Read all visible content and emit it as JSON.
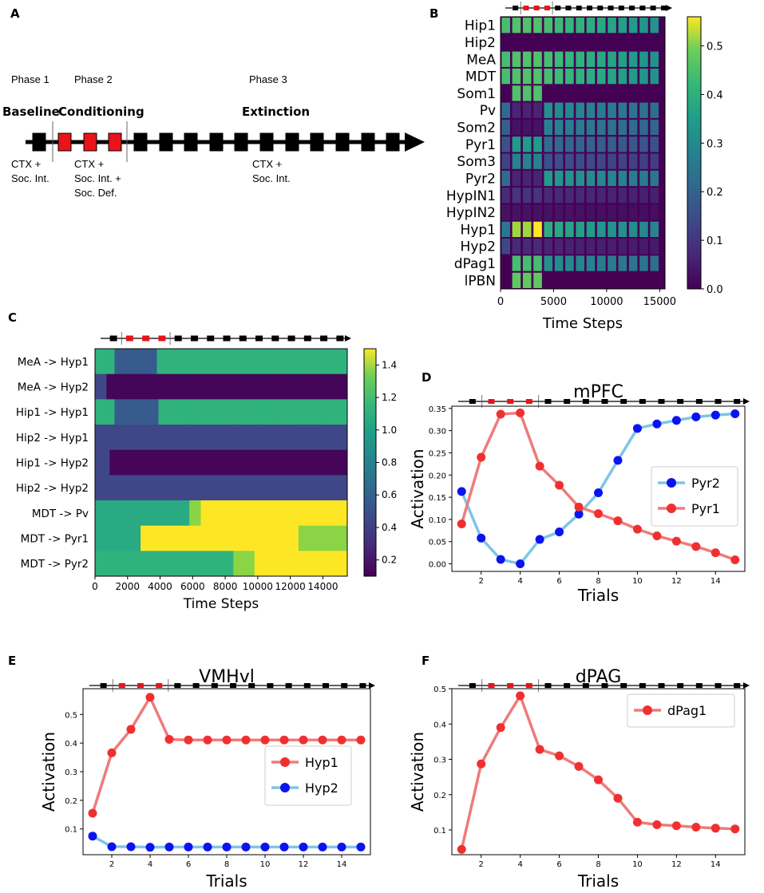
{
  "panels": {
    "a": {
      "letter": "A",
      "phases": [
        {
          "name": "Phase 1",
          "title": "Baseline",
          "desc": [
            "CTX +",
            "Soc. Int."
          ]
        },
        {
          "name": "Phase 2",
          "title": "Conditioning",
          "desc": [
            "CTX +",
            "Soc. Int. +",
            "Soc. Def."
          ]
        },
        {
          "name": "Phase 3",
          "title": "Extinction",
          "desc": [
            "CTX +",
            "Soc. Int."
          ]
        }
      ]
    },
    "b": {
      "letter": "B",
      "rows": [
        "Hip1",
        "Hip2",
        "MeA",
        "MDT",
        "Som1",
        "Pv",
        "Som2",
        "Pyr1",
        "Som3",
        "Pyr2",
        "HypIN1",
        "HypIN2",
        "Hyp1",
        "Hyp2",
        "dPag1",
        "lPBN"
      ],
      "xticks": [
        "0",
        "5000",
        "10000",
        "15000"
      ],
      "xlabel": "Time Steps",
      "cbar_ticks": [
        "0.0",
        "0.1",
        "0.2",
        "0.3",
        "0.4",
        "0.5"
      ]
    },
    "c": {
      "letter": "C",
      "rows": [
        "MeA -> Hyp1",
        "MeA -> Hyp2",
        "Hip1 -> Hyp1",
        "Hip2 -> Hyp1",
        "Hip1 -> Hyp2",
        "Hip2 -> Hyp2",
        "MDT -> Pv",
        "MDT -> Pyr1",
        "MDT -> Pyr2"
      ],
      "xticks": [
        "0",
        "2000",
        "4000",
        "6000",
        "8000",
        "10000",
        "12000",
        "14000"
      ],
      "xlabel": "Time Steps",
      "cbar_ticks": [
        "0.2",
        "0.4",
        "0.6",
        "0.8",
        "1.0",
        "1.2",
        "1.4"
      ]
    },
    "d": {
      "letter": "D"
    },
    "e": {
      "letter": "E"
    },
    "f": {
      "letter": "F"
    }
  },
  "chart_data": [
    {
      "type": "heatmap",
      "panel": "B",
      "title": "",
      "xlabel": "Time Steps",
      "ylabel": "",
      "xlim": [
        0,
        15500
      ],
      "colorbar_range": [
        0.0,
        0.56
      ],
      "rows": [
        "Hip1",
        "Hip2",
        "MeA",
        "MDT",
        "Som1",
        "Pv",
        "Som2",
        "Pyr1",
        "Som3",
        "Pyr2",
        "HypIN1",
        "HypIN2",
        "Hyp1",
        "Hyp2",
        "dPag1",
        "lPBN"
      ],
      "trials": 15
    },
    {
      "type": "heatmap",
      "panel": "C",
      "title": "",
      "xlabel": "Time Steps",
      "ylabel": "",
      "xlim": [
        0,
        15500
      ],
      "colorbar_range": [
        0.1,
        1.5
      ],
      "rows": [
        "MeA -> Hyp1",
        "MeA -> Hyp2",
        "Hip1 -> Hyp1",
        "Hip2 -> Hyp1",
        "Hip1 -> Hyp2",
        "Hip2 -> Hyp2",
        "MDT -> Pv",
        "MDT -> Pyr1",
        "MDT -> Pyr2"
      ]
    },
    {
      "type": "line",
      "panel": "D",
      "title": "mPFC",
      "xlabel": "Trials",
      "ylabel": "Activation",
      "xlim": [
        0.5,
        15.5
      ],
      "ylim": [
        -0.017,
        0.355
      ],
      "xticks": [
        2,
        4,
        6,
        8,
        10,
        12,
        14
      ],
      "yticks": [
        0.0,
        0.05,
        0.1,
        0.15,
        0.2,
        0.25,
        0.3,
        0.35
      ],
      "ytick_labels": [
        "0.00",
        "0.05",
        "0.10",
        "0.15",
        "0.20",
        "0.25",
        "0.30",
        "0.35"
      ],
      "legend": {
        "position": "center-right",
        "order": [
          "Pyr2",
          "Pyr1"
        ]
      },
      "x": [
        1,
        2,
        3,
        4,
        5,
        6,
        7,
        8,
        9,
        10,
        11,
        12,
        13,
        14,
        15
      ],
      "series": [
        {
          "name": "Pyr2",
          "color": "#7fc4e8",
          "marker": "#0a14f0",
          "values": [
            0.163,
            0.058,
            0.01,
            0.0,
            0.055,
            0.072,
            0.112,
            0.16,
            0.233,
            0.305,
            0.315,
            0.323,
            0.331,
            0.335,
            0.338
          ]
        },
        {
          "name": "Pyr1",
          "color": "#ef7b7b",
          "marker": "#f03030",
          "values": [
            0.09,
            0.24,
            0.337,
            0.34,
            0.22,
            0.177,
            0.128,
            0.113,
            0.097,
            0.078,
            0.063,
            0.051,
            0.039,
            0.025,
            0.009
          ]
        }
      ]
    },
    {
      "type": "line",
      "panel": "E",
      "title": "VMHvl",
      "xlabel": "Trials",
      "ylabel": "Activation",
      "xlim": [
        0.5,
        15.5
      ],
      "ylim": [
        0.01,
        0.59
      ],
      "xticks": [
        2,
        4,
        6,
        8,
        10,
        12,
        14
      ],
      "yticks": [
        0.1,
        0.2,
        0.3,
        0.4,
        0.5
      ],
      "ytick_labels": [
        "0.1",
        "0.2",
        "0.3",
        "0.4",
        "0.5"
      ],
      "legend": {
        "position": "center-right",
        "order": [
          "Hyp1",
          "Hyp2"
        ]
      },
      "x": [
        1,
        2,
        3,
        4,
        5,
        6,
        7,
        8,
        9,
        10,
        11,
        12,
        13,
        14,
        15
      ],
      "series": [
        {
          "name": "Hyp1",
          "color": "#ef7b7b",
          "marker": "#f03030",
          "values": [
            0.155,
            0.366,
            0.448,
            0.56,
            0.413,
            0.411,
            0.411,
            0.411,
            0.411,
            0.411,
            0.411,
            0.411,
            0.411,
            0.411,
            0.411
          ]
        },
        {
          "name": "Hyp2",
          "color": "#7fc4e8",
          "marker": "#0a14f0",
          "values": [
            0.075,
            0.038,
            0.038,
            0.036,
            0.037,
            0.037,
            0.037,
            0.037,
            0.037,
            0.037,
            0.037,
            0.037,
            0.037,
            0.037,
            0.037
          ]
        }
      ]
    },
    {
      "type": "line",
      "panel": "F",
      "title": "dPAG",
      "xlabel": "Trials",
      "ylabel": "Activation",
      "xlim": [
        0.5,
        15.5
      ],
      "ylim": [
        0.03,
        0.5
      ],
      "xticks": [
        2,
        4,
        6,
        8,
        10,
        12,
        14
      ],
      "yticks": [
        0.1,
        0.2,
        0.3,
        0.4,
        0.5
      ],
      "ytick_labels": [
        "0.1",
        "0.2",
        "0.3",
        "0.4",
        "0.5"
      ],
      "legend": {
        "position": "top-right",
        "order": [
          "dPag1"
        ]
      },
      "x": [
        1,
        2,
        3,
        4,
        5,
        6,
        7,
        8,
        9,
        10,
        11,
        12,
        13,
        14,
        15
      ],
      "series": [
        {
          "name": "dPag1",
          "color": "#ef7b7b",
          "marker": "#f03030",
          "values": [
            0.045,
            0.287,
            0.39,
            0.48,
            0.328,
            0.31,
            0.28,
            0.242,
            0.19,
            0.122,
            0.115,
            0.112,
            0.108,
            0.105,
            0.103
          ]
        }
      ]
    }
  ]
}
